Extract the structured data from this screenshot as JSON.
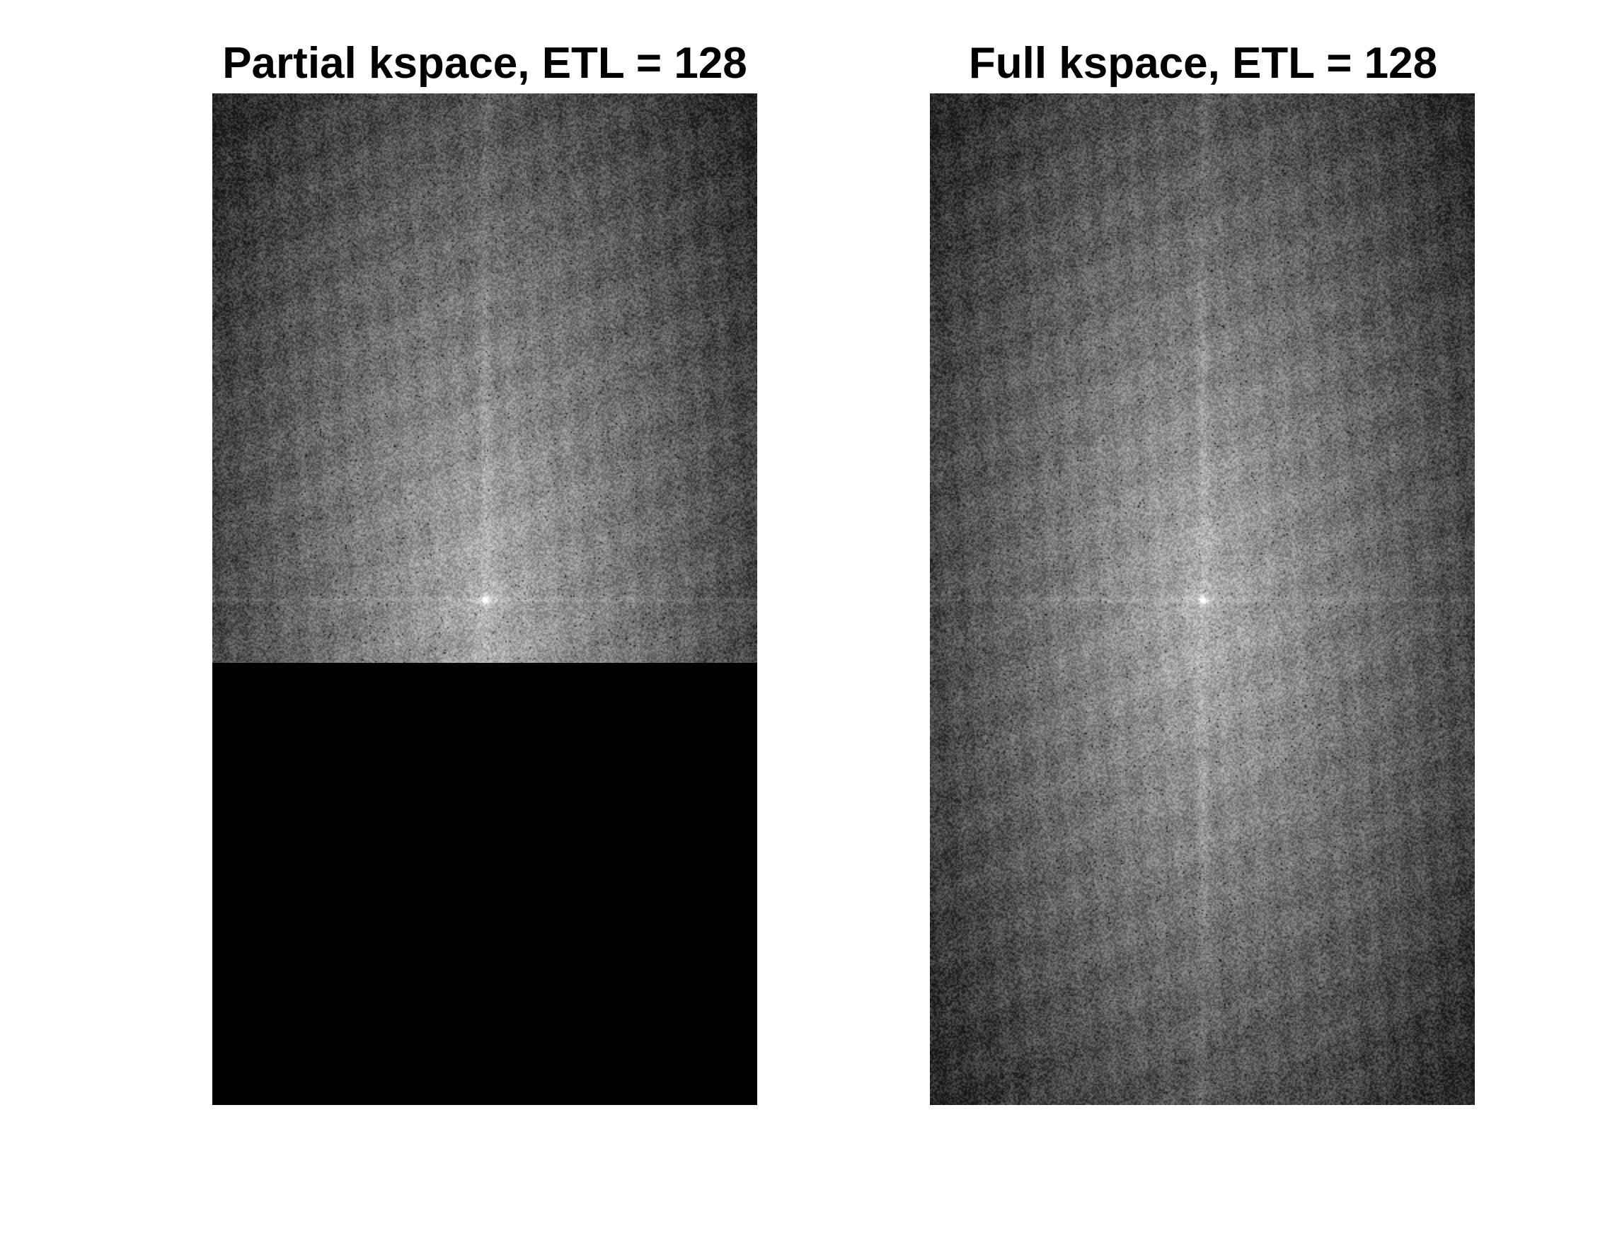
{
  "panels": [
    {
      "title": "Partial kspace, ETL = 128",
      "sampled_fraction": 0.5625,
      "unsampled_fill_color": "#000000"
    },
    {
      "title": "Full kspace, ETL = 128",
      "sampled_fraction": 1.0
    }
  ],
  "colormap": "gray"
}
